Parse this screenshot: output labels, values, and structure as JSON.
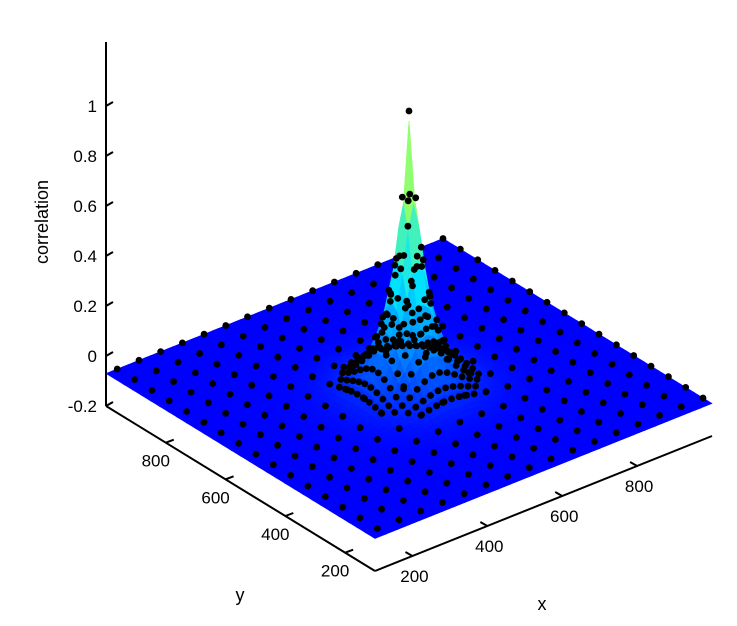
{
  "chart_data": {
    "type": "surface3d",
    "title": "",
    "xlabel": "x",
    "ylabel": "y",
    "zlabel": "correlation",
    "x_ticks": [
      "200",
      "400",
      "600",
      "800"
    ],
    "y_ticks": [
      "200",
      "400",
      "600",
      "800"
    ],
    "z_ticks": [
      "-0.2",
      "0",
      "0.2",
      "0.4",
      "0.6",
      "0.8",
      "1"
    ],
    "xlim": [
      100,
      1000
    ],
    "ylim": [
      100,
      1000
    ],
    "zlim": [
      -0.2,
      1.1
    ],
    "peak": {
      "x": 550,
      "y": 550,
      "z": 1.0
    },
    "baseline_z": -0.07,
    "colormap": [
      "#0000ff",
      "#0070ff",
      "#00e0ff",
      "#70ff90",
      "#ffff00"
    ],
    "marker_color": "#000000",
    "grid": false,
    "legend": "none"
  }
}
